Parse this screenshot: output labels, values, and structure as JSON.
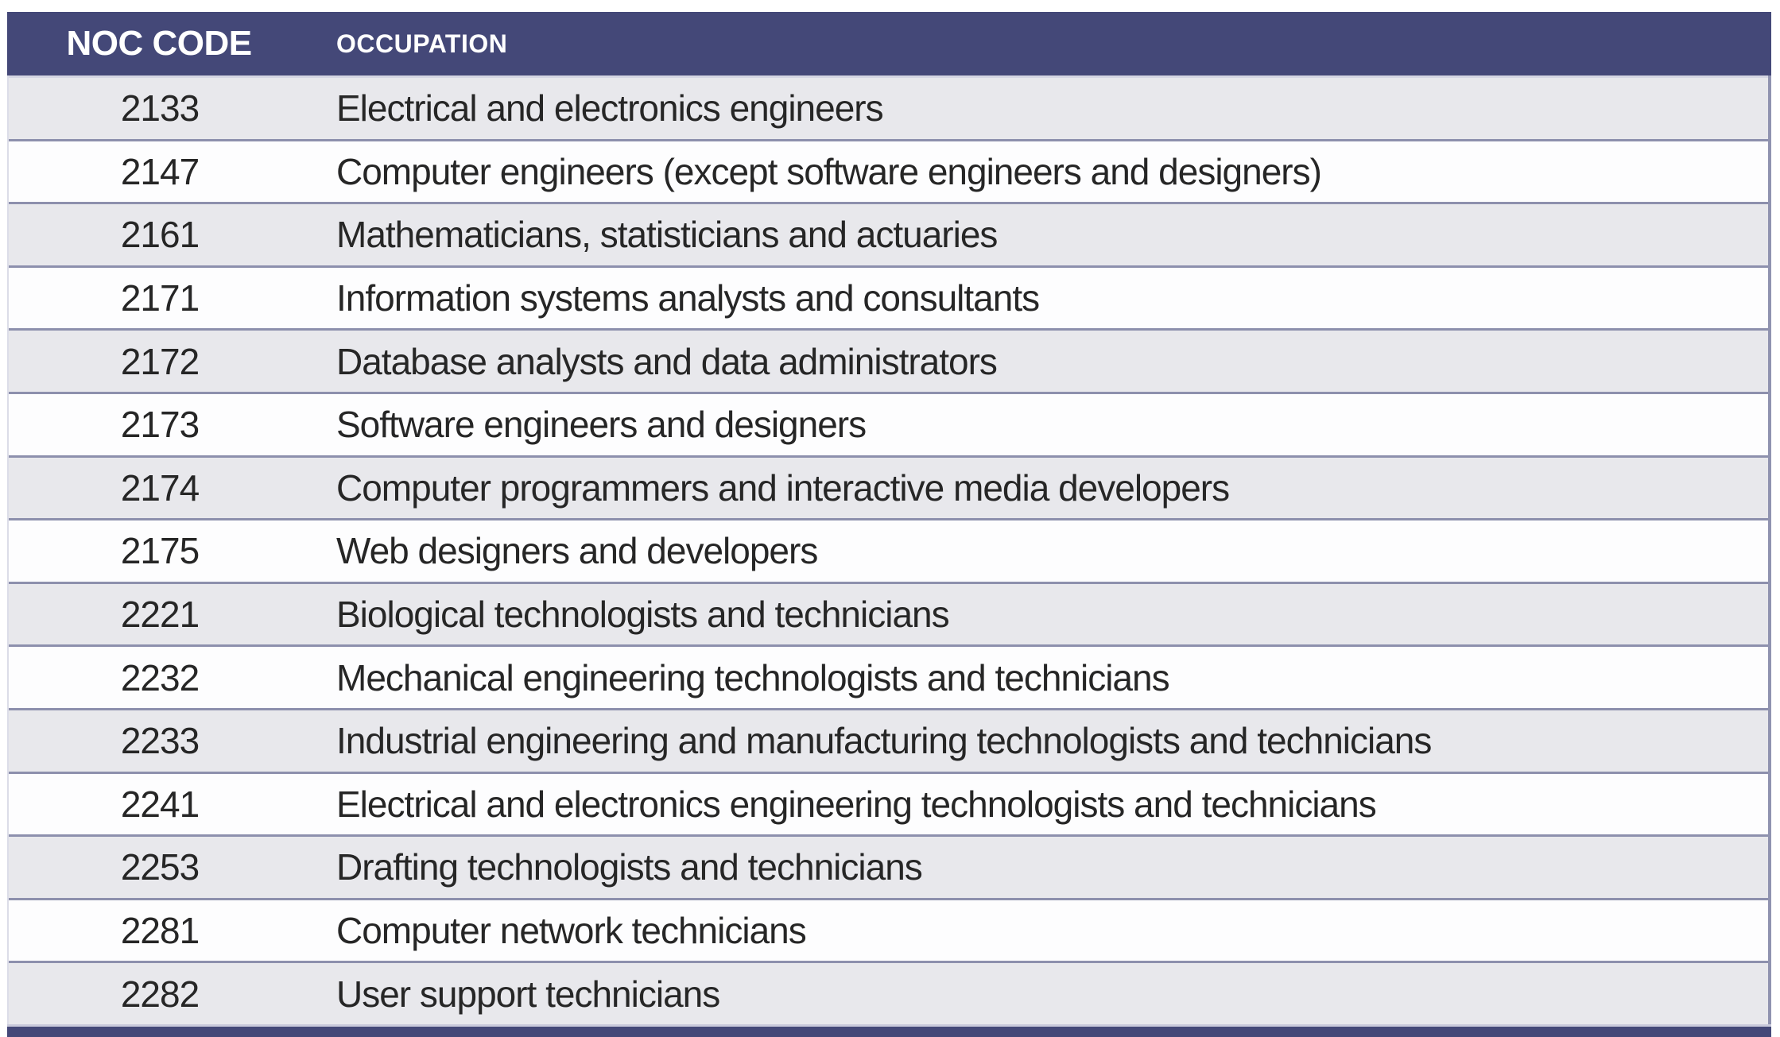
{
  "table": {
    "columns": [
      {
        "label": "NOC CODE"
      },
      {
        "label": "OCCUPATION"
      }
    ],
    "rows": [
      {
        "code": "2133",
        "occupation": "Electrical and electronics engineers"
      },
      {
        "code": "2147",
        "occupation": "Computer engineers (except software engineers and designers)"
      },
      {
        "code": "2161",
        "occupation": "Mathematicians, statisticians and actuaries"
      },
      {
        "code": "2171",
        "occupation": "Information systems analysts and consultants"
      },
      {
        "code": "2172",
        "occupation": "Database analysts and data administrators"
      },
      {
        "code": "2173",
        "occupation": "Software engineers and designers"
      },
      {
        "code": "2174",
        "occupation": "Computer programmers and interactive media developers"
      },
      {
        "code": "2175",
        "occupation": "Web designers and developers"
      },
      {
        "code": "2221",
        "occupation": "Biological technologists and technicians"
      },
      {
        "code": "2232",
        "occupation": "Mechanical engineering technologists and technicians"
      },
      {
        "code": "2233",
        "occupation": "Industrial engineering and manufacturing technologists and technicians"
      },
      {
        "code": "2241",
        "occupation": "Electrical and electronics engineering technologists and technicians"
      },
      {
        "code": "2253",
        "occupation": "Drafting technologists and technicians"
      },
      {
        "code": "2281",
        "occupation": "Computer network technicians"
      },
      {
        "code": "2282",
        "occupation": "User support technicians"
      }
    ],
    "colors": {
      "header_bg": "#444878",
      "header_text": "#ffffff",
      "row_alt_bg": "#e8e8ec",
      "row_bg": "#fdfdfe",
      "separator": "#8d90ad",
      "light_separator": "#d5d6e3",
      "body_text": "#262626"
    }
  }
}
